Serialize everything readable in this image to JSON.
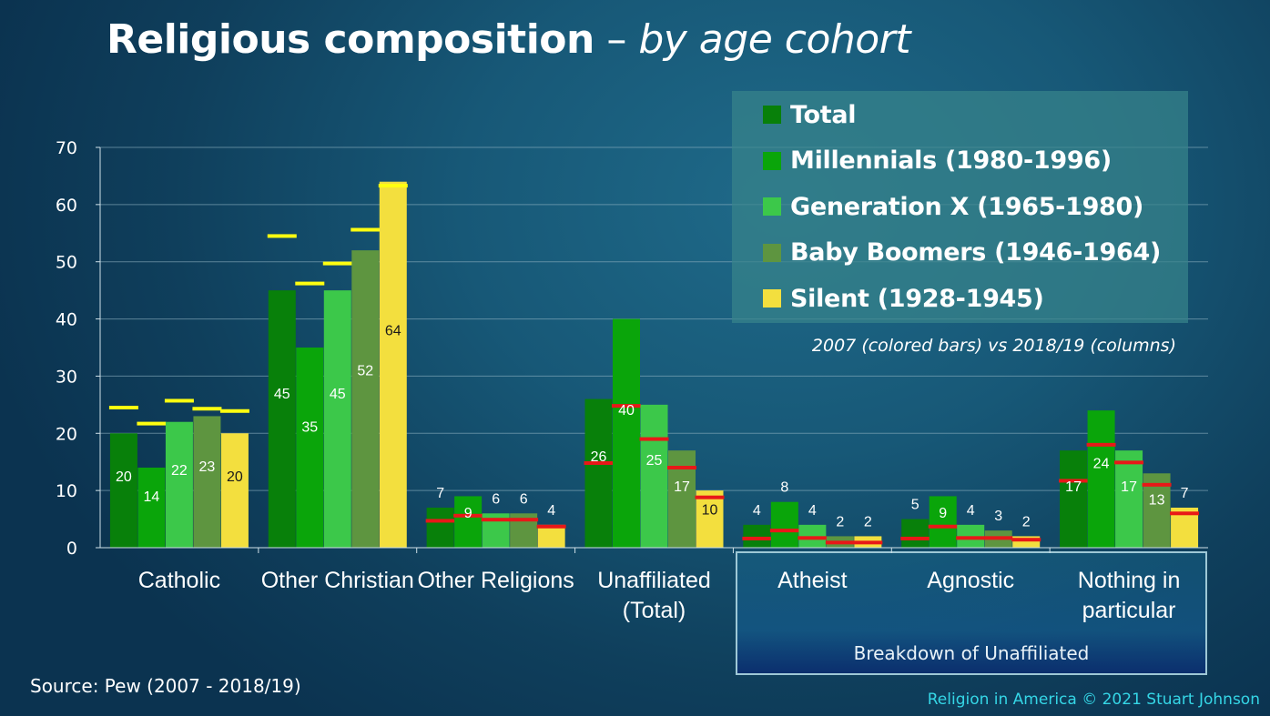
{
  "title": {
    "main": "Religious composition",
    "separator": " – ",
    "subtitle": "by age cohort"
  },
  "note": "2007 (colored bars) vs 2018/19 (columns)",
  "breakdown_label": "Breakdown of Unaffiliated",
  "source": "Source: Pew (2007 - 2018/19)",
  "copyright": "Religion in America © 2021 Stuart Johnson",
  "colors": {
    "Total": "#08800a",
    "Millennials (1980-1996)": "#0aa50a",
    "Generation X (1965-1980)": "#3cc84a",
    "Baby Boomers (1946-1964)": "#5e9540",
    "Silent (1928-1945)": "#f3df3e",
    "marker_2007_yellow": "#ffff10",
    "marker_2007_red": "#e81818"
  },
  "chart_data": {
    "type": "bar",
    "title": "Religious composition – by age cohort",
    "ylim": [
      0,
      70
    ],
    "yticks": [
      0,
      10,
      20,
      30,
      40,
      50,
      60,
      70
    ],
    "grid": true,
    "legend_position": "top-right",
    "categories": [
      "Catholic",
      "Other Christian",
      "Other Religions",
      "Unaffiliated\n(Total)",
      "Atheist",
      "Agnostic",
      "Nothing in\nparticular"
    ],
    "series": [
      {
        "name": "Total",
        "values": [
          20,
          45,
          7,
          26,
          4,
          5,
          17
        ],
        "values_2007": [
          24.5,
          54.5,
          4.7,
          14.8,
          1.6,
          1.6,
          11.7
        ]
      },
      {
        "name": "Millennials (1980-1996)",
        "values": [
          14,
          35,
          9,
          40,
          8,
          9,
          24
        ],
        "values_2007": [
          21.7,
          46.2,
          5.6,
          24.8,
          3,
          3.7,
          18
        ]
      },
      {
        "name": "Generation X (1965-1980)",
        "values": [
          22,
          45,
          6,
          25,
          4,
          4,
          17
        ],
        "values_2007": [
          25.7,
          49.7,
          4.9,
          19,
          1.7,
          1.7,
          14.9
        ]
      },
      {
        "name": "Baby Boomers (1946-1964)",
        "values": [
          23,
          52,
          6,
          17,
          2,
          3,
          13
        ],
        "values_2007": [
          24.3,
          55.6,
          4.9,
          14,
          0.9,
          1.7,
          11
        ]
      },
      {
        "name": "Silent (1928-1945)",
        "values": [
          20,
          64,
          4,
          10,
          2,
          2,
          7
        ],
        "values_2007": [
          23.9,
          63.3,
          3.7,
          8.8,
          0.9,
          1.4,
          6
        ]
      }
    ],
    "marker_color_by_category": [
      "yellow",
      "yellow",
      "red",
      "red",
      "red",
      "red",
      "red"
    ]
  }
}
